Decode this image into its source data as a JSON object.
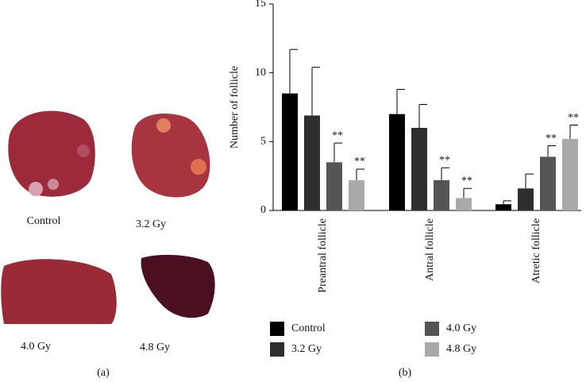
{
  "panel_a": {
    "labels": [
      "Control",
      "3.2 Gy",
      "4.0 Gy",
      "4.8 Gy"
    ],
    "caption": "(a)"
  },
  "chart_data": {
    "type": "bar",
    "caption": "(b)",
    "y_label": "Number of follicle",
    "categories": [
      "Preantral follicle",
      "Antral follicle",
      "Atretic follicle"
    ],
    "series": [
      {
        "name": "Control",
        "color": "#000000",
        "values": [
          8.5,
          7.0,
          0.45
        ],
        "errors": [
          3.2,
          1.8,
          0.25
        ]
      },
      {
        "name": "3.2 Gy",
        "color": "#2e2e2e",
        "values": [
          6.9,
          6.0,
          1.6
        ],
        "errors": [
          3.5,
          1.7,
          1.05
        ]
      },
      {
        "name": "4.0 Gy",
        "color": "#555555",
        "values": [
          3.5,
          2.2,
          3.9
        ],
        "errors": [
          1.4,
          0.9,
          0.8
        ],
        "significance": [
          "**",
          "**",
          "**"
        ]
      },
      {
        "name": "4.8 Gy",
        "color": "#a9a9a9",
        "values": [
          2.2,
          0.9,
          5.2
        ],
        "errors": [
          0.8,
          0.7,
          1.0
        ],
        "significance": [
          "**",
          "**",
          "**"
        ]
      }
    ],
    "ylim": [
      0,
      15
    ],
    "yticks": [
      0,
      5,
      10,
      15
    ]
  }
}
